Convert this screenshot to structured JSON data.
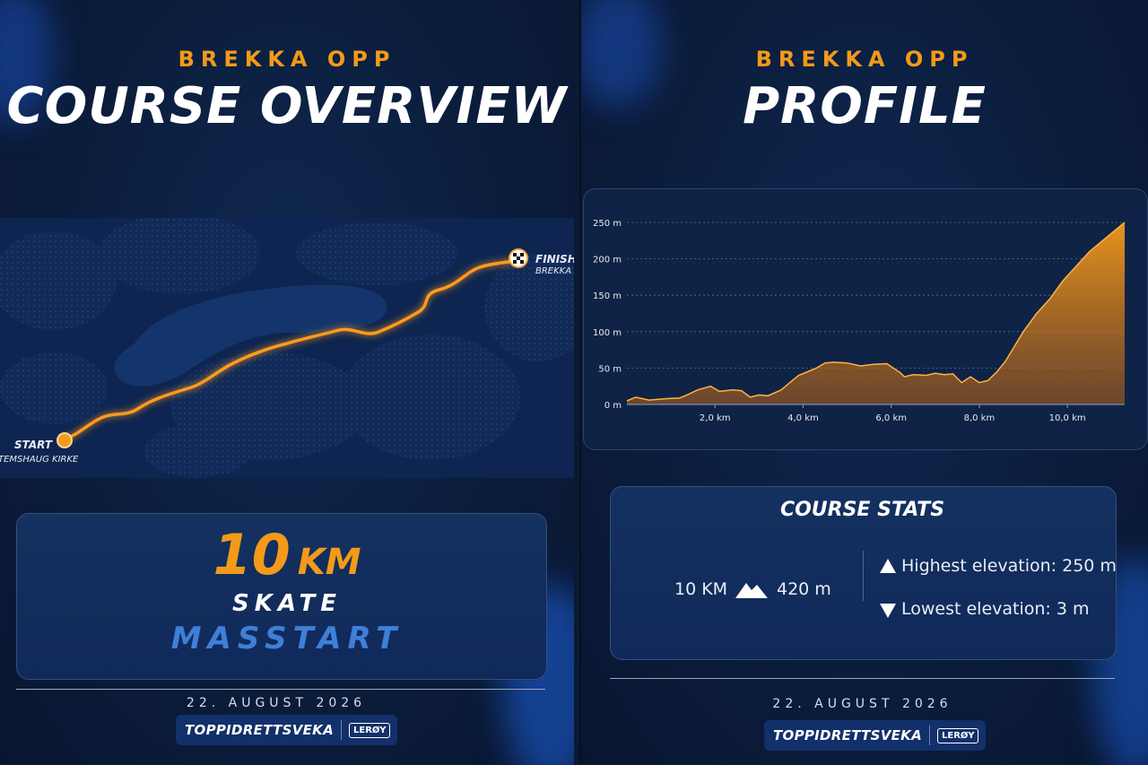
{
  "left": {
    "subtitle": "BREKKA OPP",
    "title": "COURSE OVERVIEW",
    "map": {
      "finish_label": "FINISH",
      "finish_place": "BREKKA",
      "start_label": "START",
      "start_place": "TEMSHAUG KIRKE"
    },
    "card": {
      "distance_value": "10",
      "distance_unit": "KM",
      "technique": "SKATE",
      "format": "MASSTART"
    },
    "date": "22. AUGUST 2026",
    "logo": {
      "text": "TOPPIDRETTSVEKA",
      "sponsor": "LERØY"
    }
  },
  "right": {
    "subtitle": "BREKKA OPP",
    "title": "PROFILE",
    "stats": {
      "title": "COURSE STATS",
      "distance": "10 KM",
      "climb": "420 m",
      "highest": "Highest elevation: 250 m",
      "lowest": "Lowest elevation: 3 m"
    },
    "date": "22. AUGUST 2026",
    "logo": {
      "text": "TOPPIDRETTSVEKA",
      "sponsor": "LERØY"
    }
  },
  "colors": {
    "accent": "#f39a1a",
    "accent_blue": "#3f7fd6",
    "background": "#0b1d3c"
  },
  "icons": [
    "mountain-icon",
    "triangle-up-icon",
    "triangle-down-icon",
    "checkered-flag-icon",
    "start-marker-icon"
  ],
  "chart_data": {
    "type": "area",
    "title": "",
    "xlabel": "",
    "ylabel": "",
    "x_ticks": [
      "2,0 km",
      "4,0 km",
      "6,0 km",
      "8,0 km",
      "10,0 km"
    ],
    "y_ticks": [
      "0 m",
      "50 m",
      "100 m",
      "150 m",
      "200 m",
      "250 m"
    ],
    "xlim": [
      0,
      11.3
    ],
    "ylim": [
      0,
      250
    ],
    "grid": true,
    "series": [
      {
        "x": [
          0,
          0.2,
          0.5,
          0.9,
          1.2,
          1.4,
          1.6,
          1.9,
          2.1,
          2.4,
          2.6,
          2.8,
          3.0,
          3.2,
          3.5,
          3.7,
          3.9,
          4.1,
          4.3,
          4.5,
          4.7,
          5.0,
          5.3,
          5.6,
          5.9,
          6.2,
          6.3,
          6.5,
          6.8,
          7.0,
          7.2,
          7.4,
          7.6,
          7.8,
          8.0,
          8.2,
          8.4,
          8.6,
          8.8,
          9.0,
          9.3,
          9.6,
          9.9,
          10.2,
          10.5,
          10.8,
          11.1,
          11.3
        ],
        "y": [
          5,
          10,
          6,
          8,
          9,
          14,
          20,
          25,
          18,
          20,
          19,
          10,
          13,
          12,
          20,
          30,
          40,
          45,
          50,
          57,
          58,
          57,
          53,
          55,
          56,
          44,
          38,
          41,
          40,
          43,
          41,
          42,
          30,
          38,
          30,
          33,
          45,
          60,
          80,
          100,
          125,
          145,
          170,
          190,
          210,
          225,
          240,
          250
        ]
      }
    ]
  }
}
